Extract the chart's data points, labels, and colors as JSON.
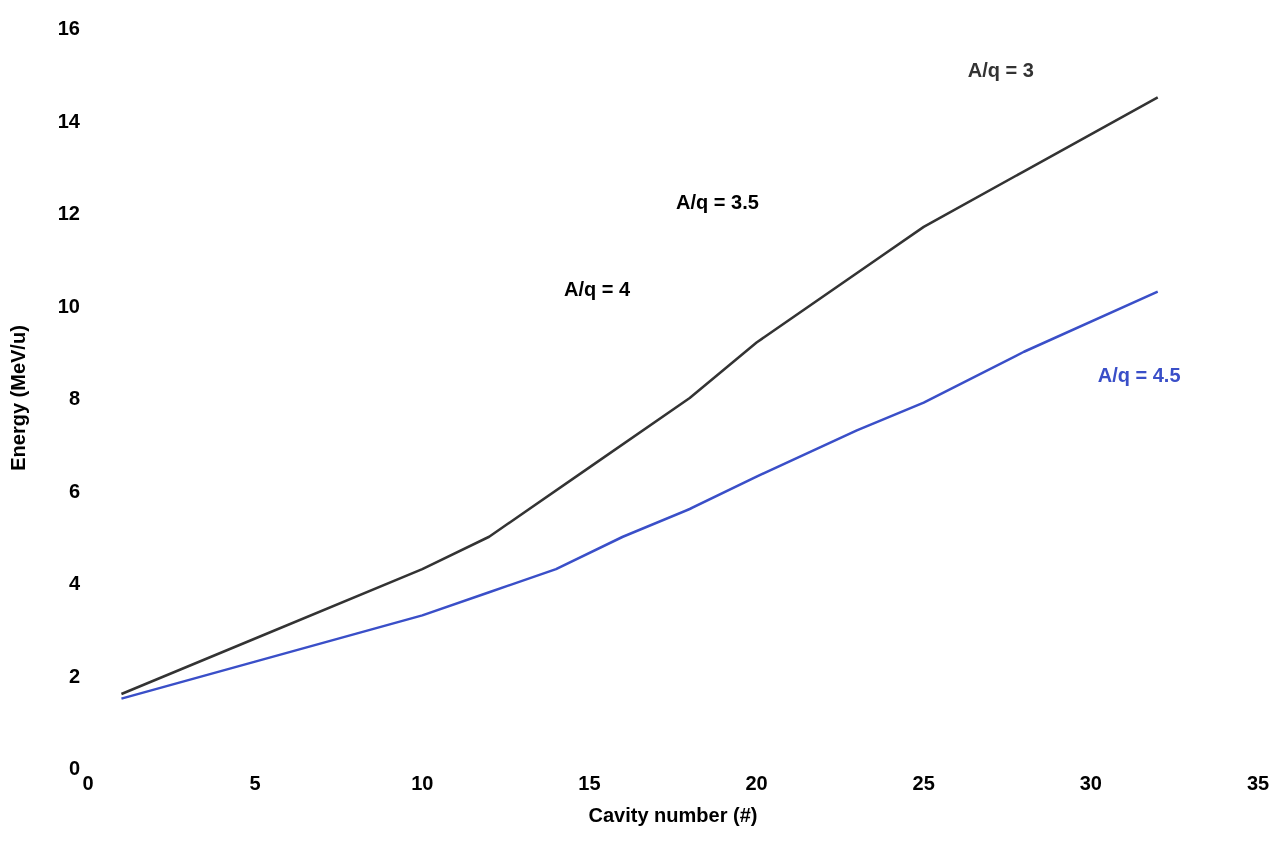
{
  "chart_data": {
    "type": "line",
    "xlabel": "Cavity number (#)",
    "ylabel": "Energy (MeV/u)",
    "xlim": [
      0,
      35
    ],
    "xticks": [
      0,
      5,
      10,
      15,
      20,
      25,
      30,
      35
    ],
    "ylim": [
      0,
      16
    ],
    "yticks": [
      0,
      2,
      4,
      6,
      8,
      10,
      12,
      14,
      16
    ],
    "marker": "none",
    "line_style": "solid",
    "series": [
      {
        "name": "A/q = 3",
        "color": "#333333",
        "x": [
          1,
          5,
          10,
          12,
          15,
          18,
          20,
          25,
          28,
          32
        ],
        "values": [
          1.6,
          2.8,
          4.3,
          5.0,
          6.5,
          8.0,
          9.2,
          11.7,
          12.9,
          14.5
        ]
      },
      {
        "name": "A/q = 4.5",
        "color": "#3a4fc8",
        "x": [
          1,
          3,
          5,
          8,
          10,
          12,
          14,
          16,
          18,
          20,
          23,
          25,
          28,
          32
        ],
        "values": [
          1.5,
          1.9,
          2.3,
          2.9,
          3.3,
          3.8,
          4.3,
          5.0,
          5.6,
          6.3,
          7.3,
          7.9,
          9.0,
          10.3
        ]
      }
    ],
    "annotations": [
      "A/q = 3.5",
      "A/q = 4"
    ]
  }
}
